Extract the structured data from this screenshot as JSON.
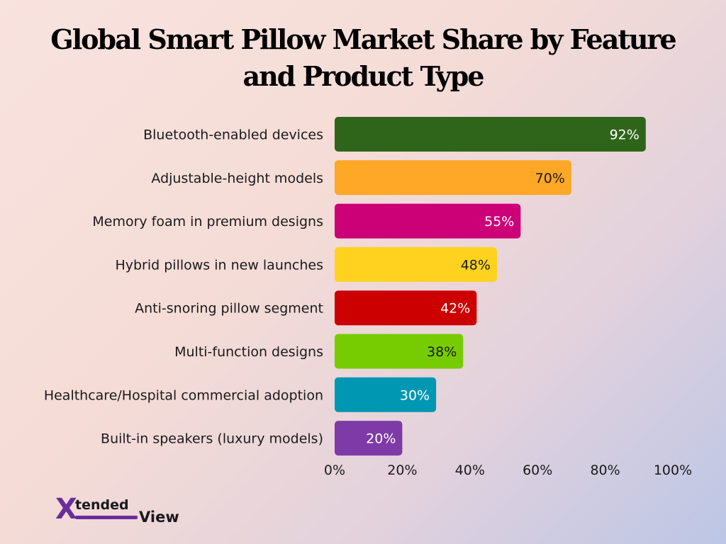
{
  "chart_data": {
    "type": "bar",
    "orientation": "horizontal",
    "title": "Global Smart Pillow Market Share by Feature and Product Type",
    "categories": [
      "Bluetooth-enabled devices",
      "Adjustable-height models",
      "Memory foam in premium designs",
      "Hybrid pillows in new launches",
      "Anti-snoring pillow segment",
      "Multi-function designs",
      "Healthcare/Hospital commercial adoption",
      "Built-in speakers (luxury models)"
    ],
    "values": [
      92,
      70,
      55,
      48,
      42,
      38,
      30,
      20
    ],
    "value_labels": [
      "92%",
      "70%",
      "55%",
      "48%",
      "42%",
      "38%",
      "30%",
      "20%"
    ],
    "colors": [
      "#2f651b",
      "#ffa726",
      "#cc0077",
      "#ffd21f",
      "#cc0000",
      "#76cc00",
      "#0097b3",
      "#7e3aa6"
    ],
    "label_colors": [
      "#ffffff",
      "#1a1a1a",
      "#ffffff",
      "#1a1a1a",
      "#ffffff",
      "#1a1a1a",
      "#ffffff",
      "#ffffff"
    ],
    "xlim": [
      0,
      100
    ],
    "xticks": [
      "0%",
      "20%",
      "40%",
      "60%",
      "80%",
      "100%"
    ],
    "xlabel": "",
    "ylabel": "",
    "grid": false,
    "legend": "none"
  },
  "logo": {
    "mark": "X",
    "part1": "tended",
    "part2": "View"
  }
}
